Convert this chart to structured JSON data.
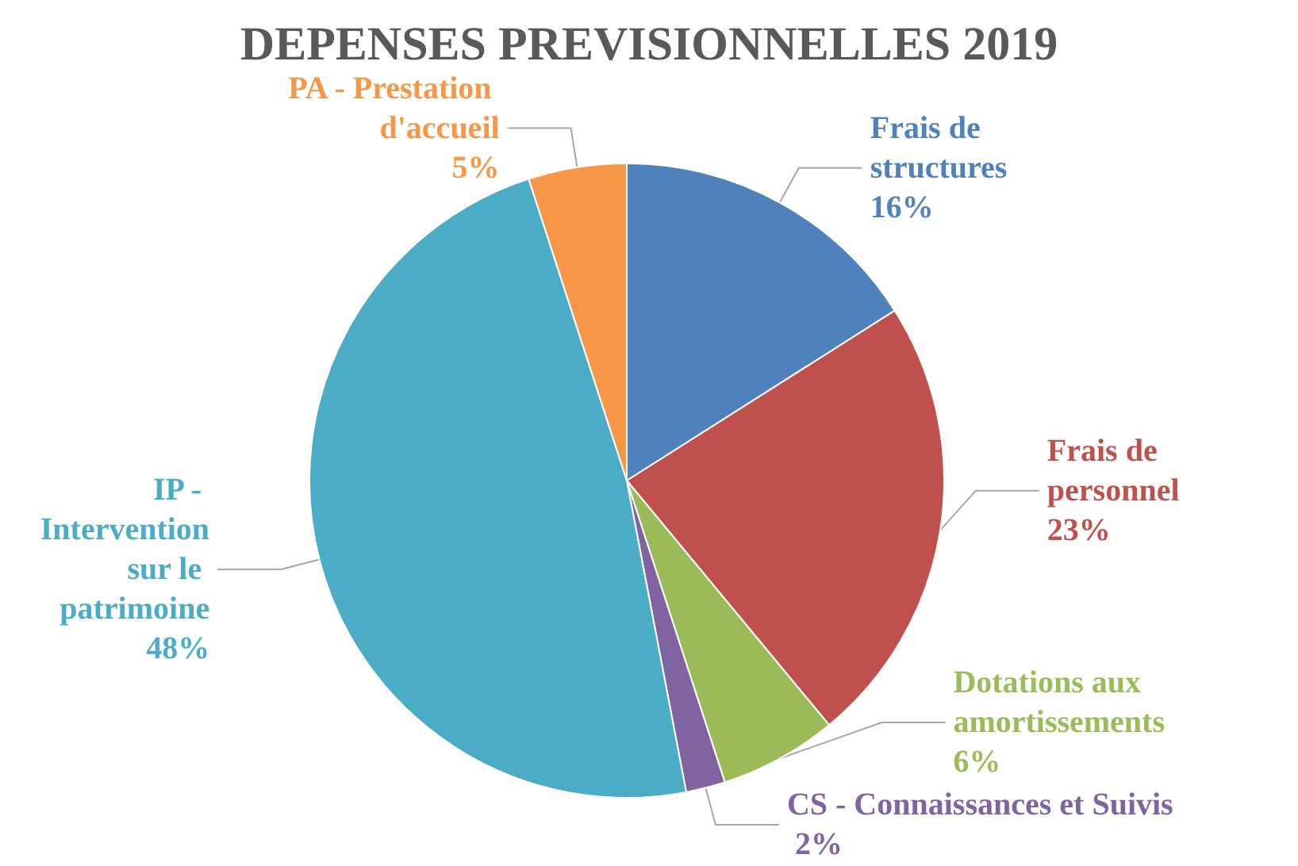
{
  "chart_data": {
    "type": "pie",
    "title": "DEPENSES PREVISIONNELLES 2019",
    "categories": [
      "Frais de structures",
      "Frais de personnel",
      "Dotations aux amortissements",
      "CS - Connaissances et Suivis",
      "IP - Intervention sur le patrimoine",
      "PA - Prestation d'accueil"
    ],
    "values": [
      16,
      23,
      6,
      2,
      48,
      5
    ],
    "value_labels": [
      "16%",
      "23%",
      "6%",
      "2%",
      "48%",
      "5%"
    ],
    "colors": [
      "#4f81bd",
      "#c0504d",
      "#9bbb59",
      "#8064a2",
      "#4bacc6",
      "#f79646"
    ],
    "legend": false
  }
}
